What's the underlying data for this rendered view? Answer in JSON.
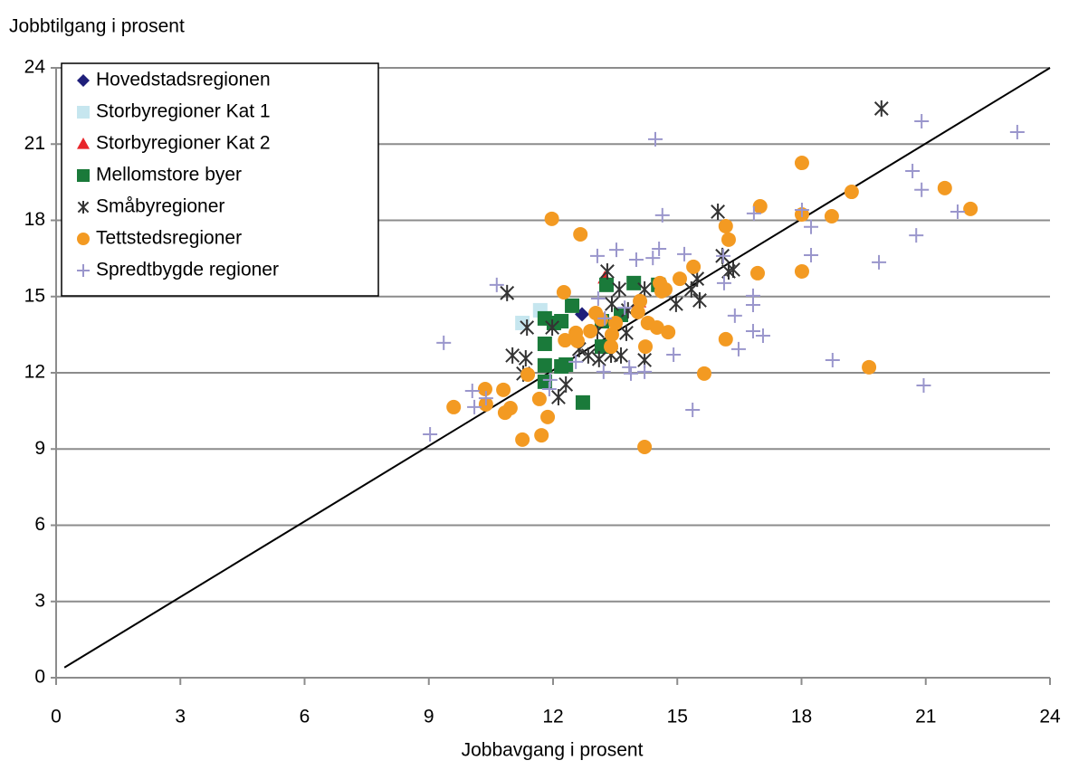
{
  "chart_data": {
    "type": "scatter",
    "y_axis_label": "Jobbtilgang i prosent",
    "x_axis_label": "Jobbavgang i prosent",
    "xlim": [
      0,
      24
    ],
    "ylim": [
      0,
      24
    ],
    "xticks": [
      0,
      3,
      6,
      9,
      12,
      15,
      18,
      21,
      24
    ],
    "yticks": [
      0,
      3,
      6,
      9,
      12,
      15,
      18,
      21,
      24
    ],
    "grid": true,
    "legend": "upper left",
    "reference_line": {
      "x": [
        0.2,
        24
      ],
      "y": [
        0.4,
        24
      ],
      "color": "#000000"
    },
    "series": [
      {
        "name": "Hovedstadsregionen",
        "marker": "diamond",
        "color": "#1f1f7a",
        "x": [
          12.7
        ],
        "values": [
          14.3
        ]
      },
      {
        "name": "Storbyregioner Kat 1",
        "marker": "square",
        "color": "#c6e6ef",
        "x": [
          11.26,
          11.69
        ],
        "values": [
          13.96,
          14.46
        ]
      },
      {
        "name": "Storbyregioner Kat 2",
        "marker": "triangle",
        "color": "#e8252a",
        "x": [
          13.25,
          14.08
        ],
        "values": [
          15.74,
          14.8
        ]
      },
      {
        "name": "Mellomstore byer",
        "marker": "square",
        "color": "#1a7a3a",
        "x": [
          13.29,
          13.95,
          14.54,
          12.46,
          12.02,
          12.2,
          11.8,
          11.8,
          11.8,
          12.31,
          12.2,
          11.8,
          12.72,
          13.64,
          13.18,
          13.18
        ],
        "values": [
          15.46,
          15.53,
          15.46,
          14.64,
          13.96,
          14.03,
          14.14,
          13.14,
          12.29,
          12.32,
          12.25,
          11.65,
          10.83,
          14.28,
          14.03,
          13.03
        ]
      },
      {
        "name": "Småbyregioner",
        "marker": "asterisk",
        "color": "#333333",
        "x": [
          19.93,
          10.89,
          15.98,
          16.09,
          16.24,
          16.35,
          15.48,
          15.34,
          15.54,
          14.97,
          13.31,
          13.6,
          13.42,
          13.81,
          14.21,
          11.37,
          11.98,
          11.02,
          11.34,
          11.28,
          12.13,
          12.31,
          12.63,
          12.85,
          13.11,
          13.4,
          13.64,
          14.21,
          13.77,
          13.07
        ],
        "values": [
          22.4,
          15.14,
          18.34,
          16.6,
          15.99,
          16.06,
          15.7,
          15.28,
          14.85,
          14.71,
          15.99,
          15.28,
          14.71,
          14.46,
          15.28,
          13.78,
          13.78,
          12.68,
          12.57,
          11.97,
          11.04,
          11.54,
          12.93,
          12.68,
          12.54,
          12.71,
          12.68,
          12.5,
          13.57,
          13.64
        ]
      },
      {
        "name": "Tettstedsregioner",
        "marker": "circle",
        "color": "#f39a22",
        "x": [
          18.01,
          21.46,
          22.08,
          19.21,
          18.73,
          18.01,
          17.0,
          16.17,
          16.24,
          16.94,
          18.01,
          11.97,
          12.66,
          15.39,
          15.06,
          14.58,
          14.71,
          14.62,
          14.1,
          14.05,
          14.29,
          14.51,
          14.78,
          14.23,
          16.17,
          15.65,
          19.63,
          14.21,
          12.26,
          13.03,
          13.51,
          13.16,
          13.42,
          13.4,
          12.9,
          12.55,
          12.29,
          12.59,
          11.39,
          11.67,
          11.87,
          11.72,
          11.26,
          10.36,
          10.8,
          10.38,
          10.97,
          10.84,
          9.6
        ],
        "values": [
          20.26,
          19.27,
          18.45,
          19.12,
          18.16,
          18.23,
          18.55,
          17.77,
          17.24,
          15.92,
          15.99,
          18.06,
          17.45,
          16.17,
          15.7,
          15.53,
          15.28,
          15.21,
          14.82,
          14.39,
          13.96,
          13.78,
          13.6,
          13.03,
          13.32,
          11.97,
          12.22,
          9.08,
          15.17,
          14.35,
          13.96,
          14.1,
          13.5,
          13.03,
          13.64,
          13.57,
          13.28,
          13.25,
          11.93,
          10.97,
          10.26,
          9.54,
          9.37,
          11.36,
          11.33,
          10.76,
          10.61,
          10.43,
          10.65
        ]
      },
      {
        "name": "Spredtbygde regioner",
        "marker": "plus",
        "color": "#9a96cc",
        "x": [
          23.21,
          20.9,
          14.47,
          20.68,
          20.9,
          21.77,
          20.77,
          19.87,
          18.75,
          20.95,
          18.01,
          16.85,
          18.23,
          18.23,
          14.64,
          13.07,
          13.53,
          14.01,
          14.56,
          14.41,
          15.17,
          16.11,
          16.13,
          10.64,
          16.83,
          16.83,
          16.39,
          16.83,
          17.07,
          16.48,
          14.91,
          15.37,
          9.36,
          9.03,
          10.05,
          10.1,
          10.38,
          13.09,
          13.73,
          13.25,
          13.22,
          13.88,
          14.21,
          11.91,
          11.93,
          13.84,
          12.55
        ],
        "values": [
          21.47,
          21.9,
          21.19,
          19.94,
          19.2,
          18.34,
          17.41,
          16.35,
          12.5,
          11.5,
          18.41,
          18.27,
          17.74,
          16.63,
          18.2,
          16.6,
          16.84,
          16.45,
          16.88,
          16.52,
          16.67,
          16.6,
          15.53,
          15.46,
          15.03,
          14.67,
          14.25,
          13.64,
          13.46,
          12.93,
          12.71,
          10.54,
          13.18,
          9.58,
          11.29,
          10.65,
          11.0,
          14.92,
          14.56,
          14.14,
          12.04,
          11.97,
          12.04,
          11.36,
          11.72,
          12.22,
          12.43
        ]
      }
    ]
  }
}
